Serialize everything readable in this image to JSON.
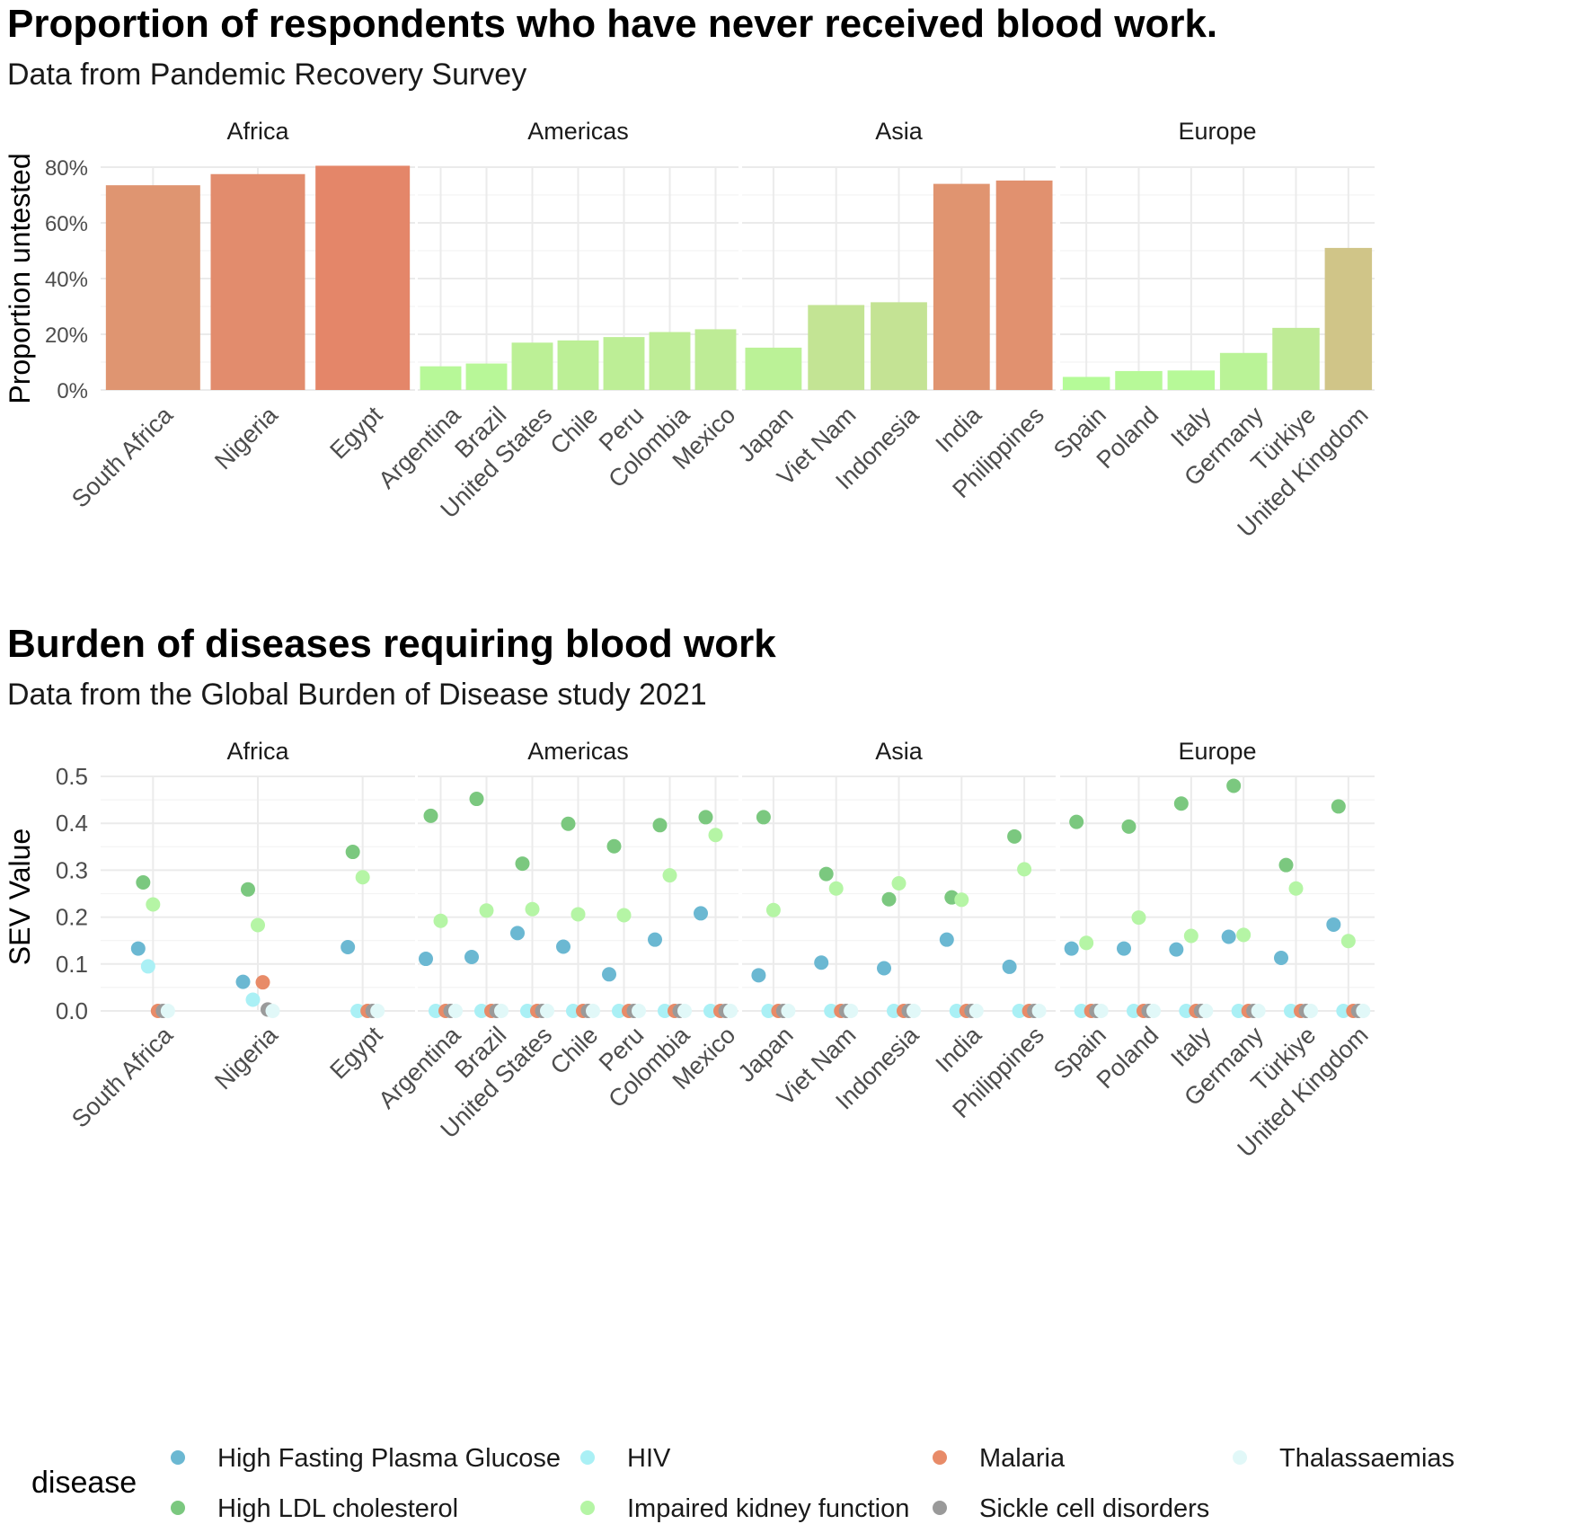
{
  "charts_text": {
    "chart1": {
      "title": "Proportion of respondents who have never received blood work.",
      "subtitle": "Data from Pandemic Recovery Survey"
    },
    "chart2": {
      "title": "Burden of diseases requiring blood work",
      "subtitle": "Data from the Global Burden of Disease study 2021"
    }
  },
  "chart_data": [
    {
      "type": "bar",
      "title": "Proportion of respondents who have never received blood work.",
      "subtitle": "Data from Pandemic Recovery Survey",
      "ylabel": "Proportion untested",
      "xlabel": "",
      "ylim": [
        0,
        0.8
      ],
      "yticks": [
        0,
        0.2,
        0.4,
        0.6,
        0.8
      ],
      "ytick_labels": [
        "0%",
        "20%",
        "40%",
        "60%",
        "80%"
      ],
      "grid": true,
      "facets": [
        {
          "name": "Africa",
          "countries": [
            "South Africa",
            "Nigeria",
            "Egypt"
          ],
          "values": [
            0.735,
            0.775,
            0.805
          ]
        },
        {
          "name": "Americas",
          "countries": [
            "Argentina",
            "Brazil",
            "United States",
            "Chile",
            "Peru",
            "Colombia",
            "Mexico"
          ],
          "values": [
            0.085,
            0.095,
            0.17,
            0.178,
            0.19,
            0.208,
            0.218
          ]
        },
        {
          "name": "Asia",
          "countries": [
            "Japan",
            "Viet Nam",
            "Indonesia",
            "India",
            "Philippines"
          ],
          "values": [
            0.152,
            0.305,
            0.315,
            0.74,
            0.752
          ]
        },
        {
          "name": "Europe",
          "countries": [
            "Spain",
            "Poland",
            "Italy",
            "Germany",
            "Türkiye",
            "United Kingdom"
          ],
          "values": [
            0.047,
            0.068,
            0.07,
            0.133,
            0.223,
            0.51
          ]
        }
      ],
      "color_scale": {
        "low": "#b3ff99",
        "mid": "#c8dc93",
        "high": "#e4876a"
      }
    },
    {
      "type": "scatter",
      "title": "Burden of diseases requiring blood work",
      "subtitle": "Data from the Global Burden of Disease study 2021",
      "ylabel": "SEV Value",
      "xlabel": "",
      "ylim": [
        0,
        0.5
      ],
      "yticks": [
        0,
        0.1,
        0.2,
        0.3,
        0.4,
        0.5
      ],
      "ytick_labels": [
        "0.0",
        "0.1",
        "0.2",
        "0.3",
        "0.4",
        "0.5"
      ],
      "grid": true,
      "legend_title": "disease",
      "legend_position": "bottom",
      "facets": [
        {
          "name": "Africa",
          "countries": [
            "South Africa",
            "Nigeria",
            "Egypt"
          ]
        },
        {
          "name": "Americas",
          "countries": [
            "Argentina",
            "Brazil",
            "United States",
            "Chile",
            "Peru",
            "Colombia",
            "Mexico"
          ]
        },
        {
          "name": "Asia",
          "countries": [
            "Japan",
            "Viet Nam",
            "Indonesia",
            "India",
            "Philippines"
          ]
        },
        {
          "name": "Europe",
          "countries": [
            "Spain",
            "Poland",
            "Italy",
            "Germany",
            "Türkiye",
            "United Kingdom"
          ]
        }
      ],
      "country_order": [
        "South Africa",
        "Nigeria",
        "Egypt",
        "Argentina",
        "Brazil",
        "United States",
        "Chile",
        "Peru",
        "Colombia",
        "Mexico",
        "Japan",
        "Viet Nam",
        "Indonesia",
        "India",
        "Philippines",
        "Spain",
        "Poland",
        "Italy",
        "Germany",
        "Türkiye",
        "United Kingdom"
      ],
      "series": [
        {
          "name": "High Fasting Plasma Glucose",
          "color": "#6bb8d2",
          "values": [
            0.133,
            0.062,
            0.136,
            0.111,
            0.115,
            0.166,
            0.137,
            0.078,
            0.152,
            0.208,
            0.076,
            0.103,
            0.091,
            0.152,
            0.094,
            0.133,
            0.133,
            0.131,
            0.158,
            0.113,
            0.184
          ]
        },
        {
          "name": "High LDL cholesterol",
          "color": "#7bc87f",
          "values": [
            0.274,
            0.259,
            0.339,
            0.416,
            0.452,
            0.314,
            0.399,
            0.351,
            0.396,
            0.413,
            0.413,
            0.292,
            0.238,
            0.242,
            0.372,
            0.403,
            0.393,
            0.442,
            0.48,
            0.311,
            0.436
          ]
        },
        {
          "name": "HIV",
          "color": "#aaf0f5",
          "values": [
            0.095,
            0.024,
            0.0,
            0.0,
            0.0,
            0.0,
            0.0,
            0.0,
            0.0,
            0.0,
            0.0,
            0.0,
            0.0,
            0.0,
            0.0,
            0.0,
            0.0,
            0.0,
            0.0,
            0.0,
            0.0
          ]
        },
        {
          "name": "Impaired kidney function",
          "color": "#b5f5a5",
          "values": [
            0.227,
            0.183,
            0.285,
            0.192,
            0.214,
            0.217,
            0.206,
            0.204,
            0.289,
            0.375,
            0.215,
            0.261,
            0.272,
            0.237,
            0.302,
            0.145,
            0.199,
            0.16,
            0.162,
            0.261,
            0.149
          ]
        },
        {
          "name": "Malaria",
          "color": "#e88b68",
          "values": [
            0.0,
            0.061,
            0.0,
            0.0,
            0.0,
            0.0,
            0.0,
            0.0,
            0.0,
            0.0,
            0.0,
            0.0,
            0.0,
            0.0,
            0.0,
            0.0,
            0.0,
            0.0,
            0.0,
            0.0,
            0.0
          ]
        },
        {
          "name": "Sickle cell disorders",
          "color": "#9a9a9a",
          "values": [
            0.0,
            0.003,
            0.0,
            0.0,
            0.0,
            0.0,
            0.0,
            0.0,
            0.0,
            0.0,
            0.0,
            0.0,
            0.0,
            0.0,
            0.0,
            0.0,
            0.0,
            0.0,
            0.0,
            0.0,
            0.0
          ]
        },
        {
          "name": "Thalassaemias",
          "color": "#e1f8f8",
          "values": [
            0.0,
            0.0,
            0.0,
            0.0,
            0.0,
            0.0,
            0.0,
            0.0,
            0.0,
            0.0,
            0.0,
            0.0,
            0.0,
            0.0,
            0.0,
            0.0,
            0.0,
            0.0,
            0.0,
            0.0,
            0.0
          ]
        }
      ]
    }
  ]
}
